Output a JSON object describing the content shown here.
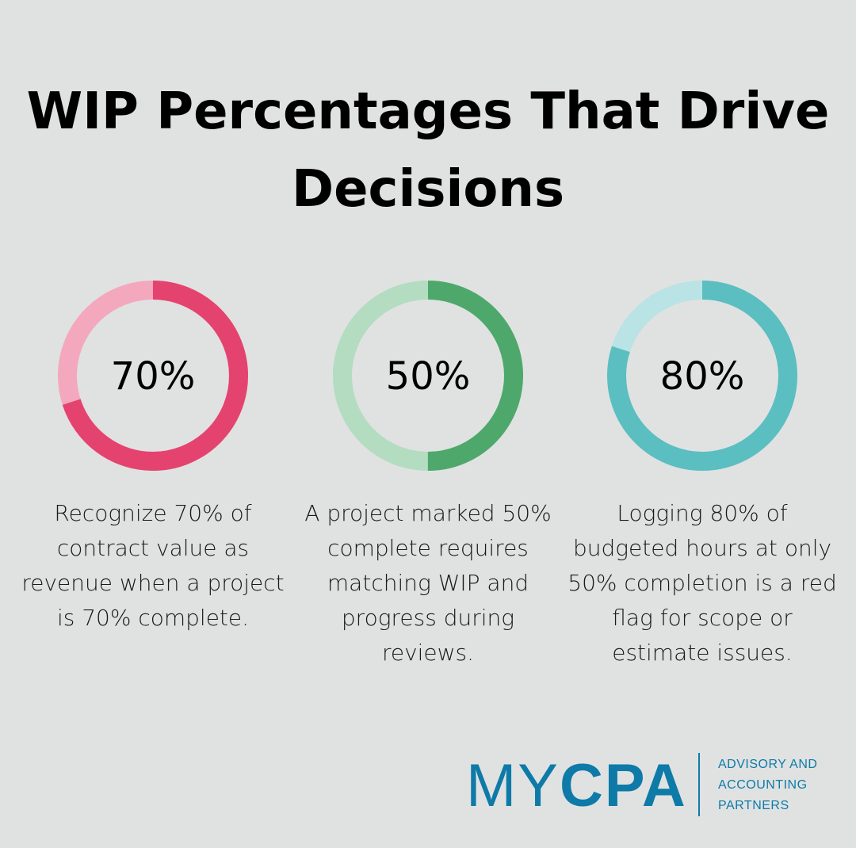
{
  "title": "WIP Percentages That Drive Decisions",
  "chart_data": [
    {
      "type": "pie",
      "variant": "donut",
      "label": "70%",
      "value": 70,
      "values": [
        70,
        30
      ],
      "colors": {
        "fill": "#e5436f",
        "rest": "#f3a8be"
      },
      "description": "Recognize 70% of contract value as revenue when a project is 70% complete."
    },
    {
      "type": "pie",
      "variant": "donut",
      "label": "50%",
      "value": 50,
      "values": [
        50,
        50
      ],
      "colors": {
        "fill": "#4ea86c",
        "rest": "#b3dcc1"
      },
      "description": "A project marked 50% complete requires matching WIP and progress during reviews."
    },
    {
      "type": "pie",
      "variant": "donut",
      "label": "80%",
      "value": 80,
      "values": [
        80,
        20
      ],
      "colors": {
        "fill": "#5bbec1",
        "rest": "#b9e3e4"
      },
      "description": "Logging 80% of budgeted hours at only 50% completion is a red flag for scope or estimate issues."
    }
  ],
  "logo": {
    "brand_light": "MY",
    "brand_bold": "CPA",
    "tagline": [
      "ADVISORY AND",
      "ACCOUNTING",
      "PARTNERS"
    ],
    "color": "#0e7aa8"
  }
}
